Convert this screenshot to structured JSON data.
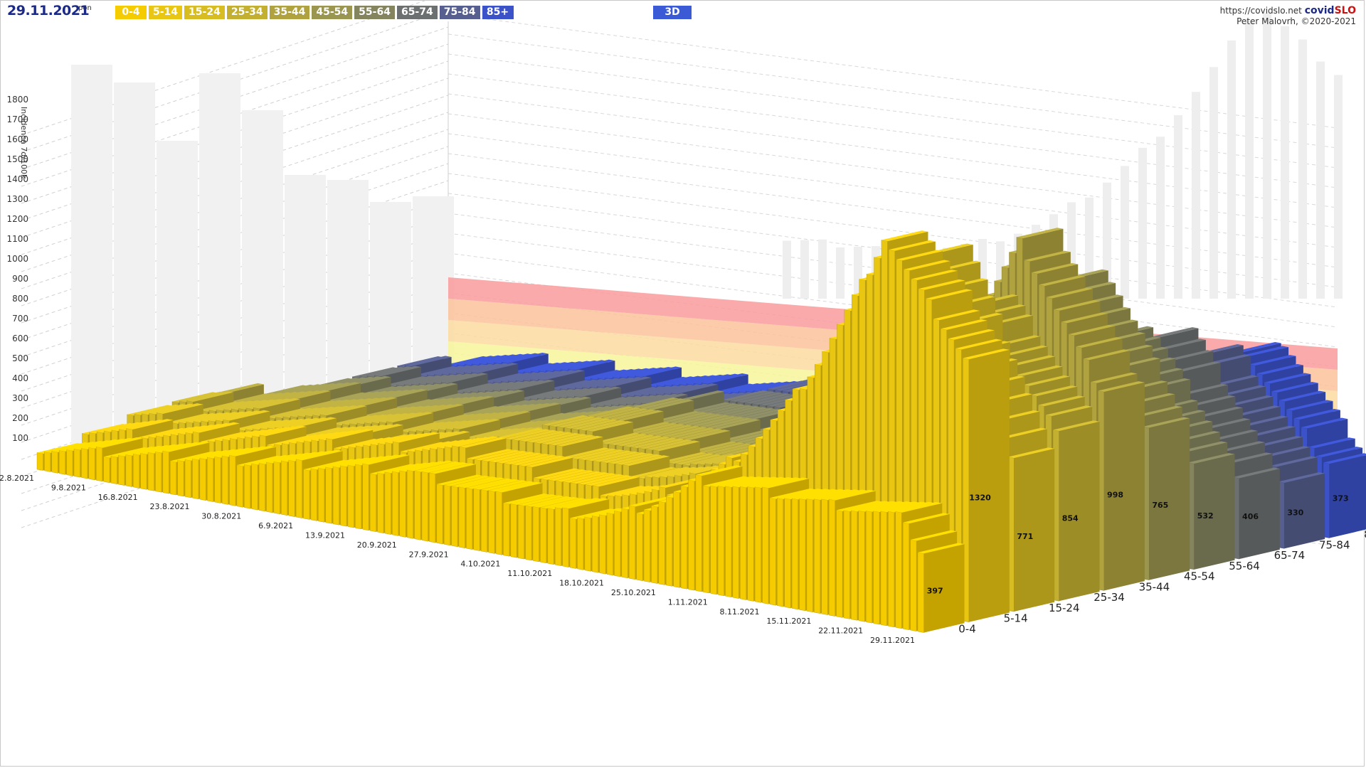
{
  "header": {
    "date": "29.11.2021",
    "day": "pon",
    "mode_button": "3D",
    "source_url": "https://covidslo.net",
    "brand_a": "covid",
    "brand_b": "SLO",
    "author": "Peter Malovrh, ©2020-2021"
  },
  "legend": [
    {
      "label": "0-4",
      "color": "#f5cc00"
    },
    {
      "label": "5-14",
      "color": "#e9c611"
    },
    {
      "label": "15-24",
      "color": "#d8bd22"
    },
    {
      "label": "25-34",
      "color": "#c4b030"
    },
    {
      "label": "35-44",
      "color": "#b0a33f"
    },
    {
      "label": "45-54",
      "color": "#9a954f"
    },
    {
      "label": "55-64",
      "color": "#84845f"
    },
    {
      "label": "65-74",
      "color": "#6d7070"
    },
    {
      "label": "75-84",
      "color": "#565f8f"
    },
    {
      "label": "85+",
      "color": "#3b52c9"
    }
  ],
  "chart_data": {
    "type": "bar3d",
    "ylabel": "Incidenca 7d/100k",
    "yticks": [
      100,
      200,
      300,
      400,
      500,
      600,
      700,
      800,
      900,
      1000,
      1100,
      1200,
      1300,
      1400,
      1500,
      1600,
      1700,
      1800
    ],
    "ylim": [
      0,
      1900
    ],
    "date_ticks": [
      "2.8.2021",
      "9.8.2021",
      "16.8.2021",
      "23.8.2021",
      "30.8.2021",
      "6.9.2021",
      "13.9.2021",
      "20.9.2021",
      "27.9.2021",
      "4.10.2021",
      "11.10.2021",
      "18.10.2021",
      "25.10.2021",
      "1.11.2021",
      "8.11.2021",
      "15.11.2021",
      "22.11.2021",
      "29.11.2021"
    ],
    "groups": [
      "0-4",
      "5-14",
      "15-24",
      "25-34",
      "35-44",
      "45-54",
      "55-64",
      "65-74",
      "75-84",
      "85+"
    ],
    "last_values": [
      397,
      1320,
      771,
      854,
      998,
      765,
      532,
      406,
      330,
      373
    ],
    "peak_values": [
      0,
      1850,
      1720,
      1400,
      1670,
      1450,
      1100,
      1030,
      880,
      860
    ],
    "bands": [
      {
        "name": "green",
        "color": "#8fc98c"
      },
      {
        "name": "yellow",
        "color": "#f7f49a"
      },
      {
        "name": "light-orange",
        "color": "#fbdca0"
      },
      {
        "name": "orange",
        "color": "#fbc29a"
      },
      {
        "name": "red",
        "color": "#f99b9b"
      }
    ]
  }
}
